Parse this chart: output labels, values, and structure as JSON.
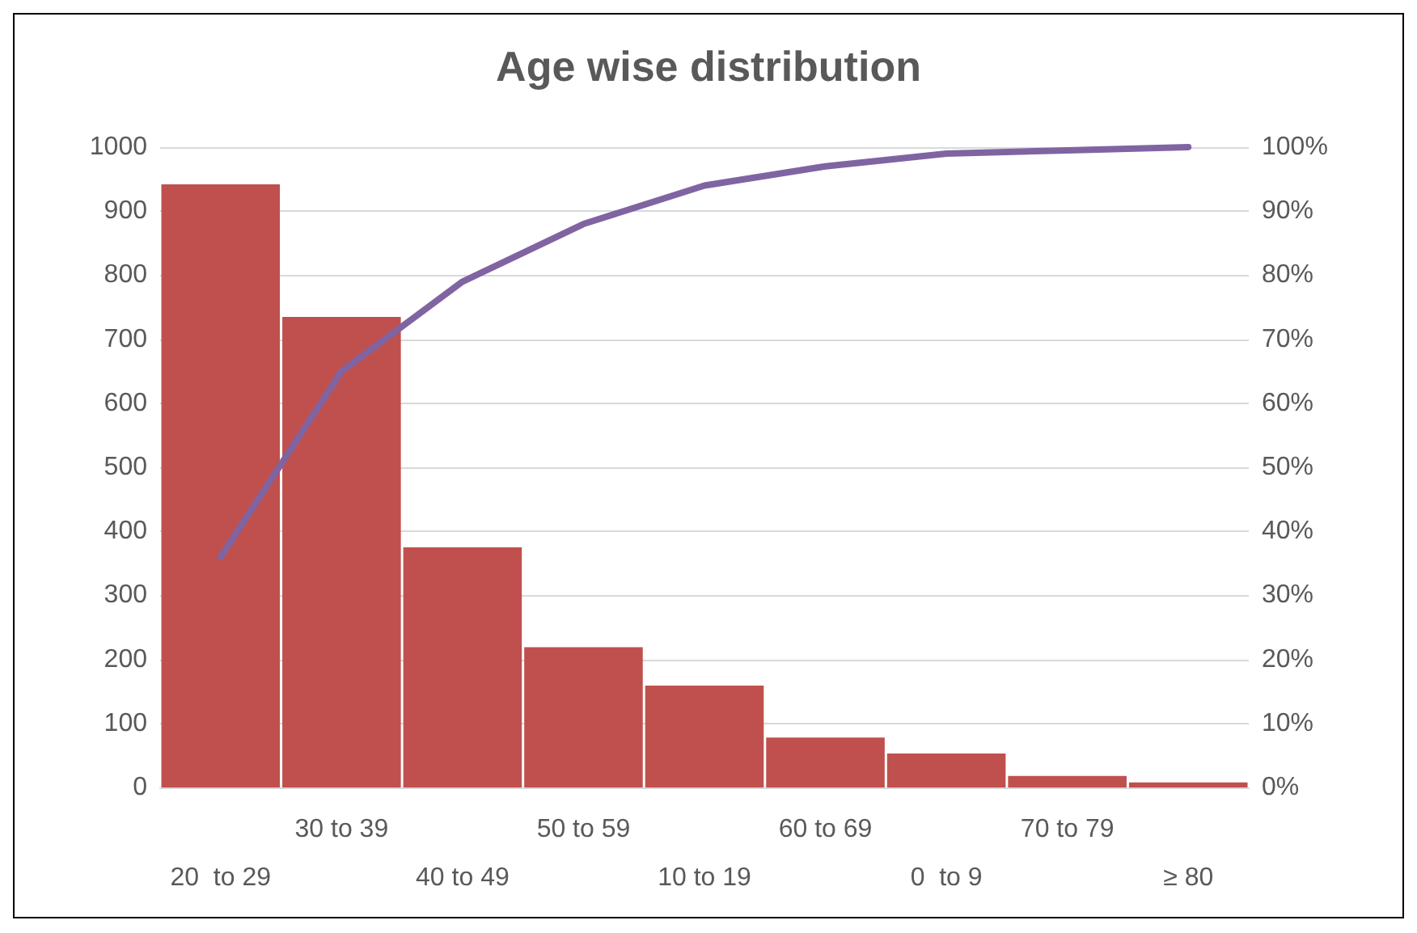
{
  "chart_data": {
    "type": "bar",
    "title": "Age wise distribution",
    "categories": [
      "20  to 29",
      "30 to 39",
      "40 to 49",
      "50 to 59",
      "10 to 19",
      "60 to 69",
      "0  to 9",
      "70 to 79",
      "≥ 80"
    ],
    "series": [
      {
        "color": "#c0504d",
        "values": [
          942,
          735,
          375,
          219,
          159,
          78,
          53,
          18,
          8
        ]
      },
      {
        "type": "line",
        "axis": "y2",
        "color": "#8064a2",
        "values": [
          36,
          65,
          79,
          88,
          94,
          97,
          99,
          99.5,
          100
        ]
      }
    ],
    "ylim": [
      0,
      1000
    ],
    "yticks": [
      0,
      100,
      200,
      300,
      400,
      500,
      600,
      700,
      800,
      900,
      1000
    ],
    "y2lim": [
      0,
      100
    ],
    "y2ticks": [
      {
        "value": 0,
        "label": "0%"
      },
      {
        "value": 10,
        "label": "10%"
      },
      {
        "value": 20,
        "label": "20%"
      },
      {
        "value": 30,
        "label": "30%"
      },
      {
        "value": 40,
        "label": "40%"
      },
      {
        "value": 50,
        "label": "50%"
      },
      {
        "value": 60,
        "label": "60%"
      },
      {
        "value": 70,
        "label": "70%"
      },
      {
        "value": 80,
        "label": "80%"
      },
      {
        "value": 90,
        "label": "90%"
      },
      {
        "value": 100,
        "label": "100%"
      }
    ],
    "grid": true,
    "marker": "none"
  }
}
